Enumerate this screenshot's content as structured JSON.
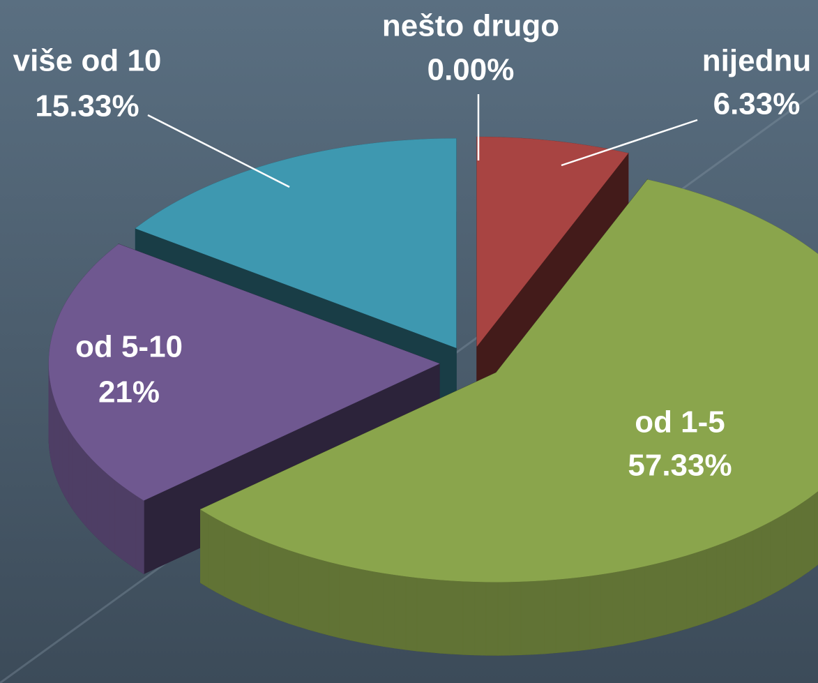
{
  "chart_data": {
    "type": "pie",
    "categories": [
      "nijednu",
      "od 1-5",
      "od 5-10",
      "više od 10",
      "nešto drugo"
    ],
    "values": [
      6.33,
      57.33,
      21,
      15.33,
      0
    ],
    "value_labels": [
      "6.33%",
      "57.33%",
      "21%",
      "15.33%",
      "0.00%"
    ],
    "colors": [
      "#a84442",
      "#8aa54c",
      "#6f5890",
      "#3e98b0",
      "#cccccc"
    ]
  }
}
